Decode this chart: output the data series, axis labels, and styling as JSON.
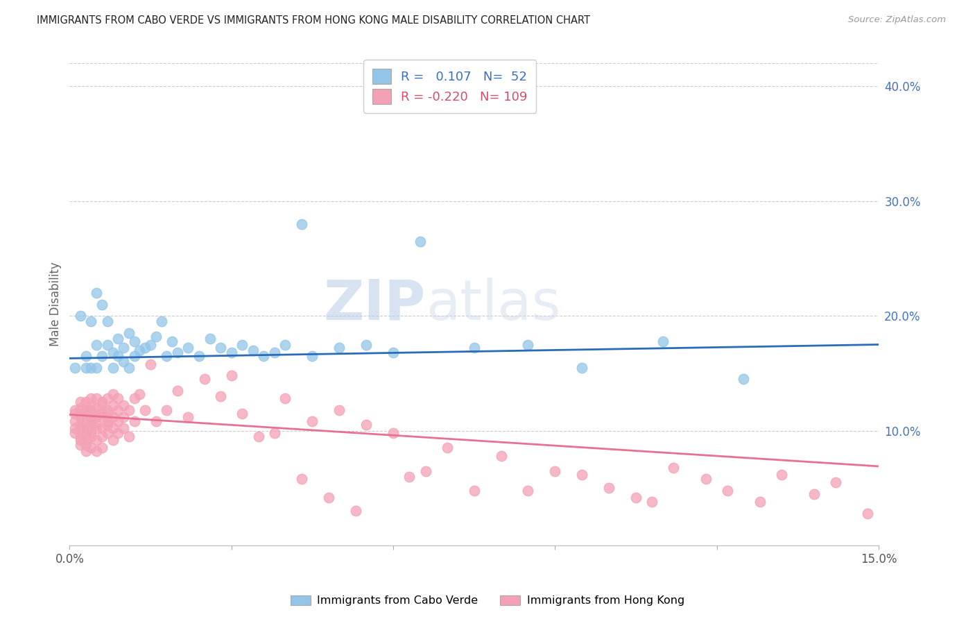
{
  "title": "IMMIGRANTS FROM CABO VERDE VS IMMIGRANTS FROM HONG KONG MALE DISABILITY CORRELATION CHART",
  "source": "Source: ZipAtlas.com",
  "ylabel": "Male Disability",
  "xlim": [
    0.0,
    0.15
  ],
  "ylim": [
    0.0,
    0.42
  ],
  "legend1_label": "Immigrants from Cabo Verde",
  "legend2_label": "Immigrants from Hong Kong",
  "r1": 0.107,
  "n1": 52,
  "r2": -0.22,
  "n2": 109,
  "cabo_verde_color": "#92C5E8",
  "hong_kong_color": "#F4A0B5",
  "trendline1_color": "#2B6CB8",
  "trendline2_color": "#E87090",
  "watermark_zip": "ZIP",
  "watermark_atlas": "atlas",
  "cabo_verde_x": [
    0.001,
    0.002,
    0.003,
    0.003,
    0.004,
    0.004,
    0.005,
    0.005,
    0.005,
    0.006,
    0.006,
    0.007,
    0.007,
    0.008,
    0.008,
    0.009,
    0.009,
    0.01,
    0.01,
    0.011,
    0.011,
    0.012,
    0.012,
    0.013,
    0.014,
    0.015,
    0.016,
    0.017,
    0.018,
    0.019,
    0.02,
    0.022,
    0.024,
    0.026,
    0.028,
    0.03,
    0.032,
    0.034,
    0.036,
    0.038,
    0.04,
    0.043,
    0.045,
    0.05,
    0.055,
    0.06,
    0.065,
    0.075,
    0.085,
    0.095,
    0.11,
    0.125
  ],
  "cabo_verde_y": [
    0.155,
    0.2,
    0.165,
    0.155,
    0.195,
    0.155,
    0.22,
    0.175,
    0.155,
    0.21,
    0.165,
    0.175,
    0.195,
    0.168,
    0.155,
    0.18,
    0.165,
    0.172,
    0.16,
    0.185,
    0.155,
    0.178,
    0.165,
    0.17,
    0.172,
    0.175,
    0.182,
    0.195,
    0.165,
    0.178,
    0.168,
    0.172,
    0.165,
    0.18,
    0.172,
    0.168,
    0.175,
    0.17,
    0.165,
    0.168,
    0.175,
    0.28,
    0.165,
    0.172,
    0.175,
    0.168,
    0.265,
    0.172,
    0.175,
    0.155,
    0.178,
    0.145
  ],
  "hong_kong_x": [
    0.001,
    0.001,
    0.001,
    0.001,
    0.001,
    0.002,
    0.002,
    0.002,
    0.002,
    0.002,
    0.002,
    0.002,
    0.002,
    0.002,
    0.003,
    0.003,
    0.003,
    0.003,
    0.003,
    0.003,
    0.003,
    0.003,
    0.003,
    0.004,
    0.004,
    0.004,
    0.004,
    0.004,
    0.004,
    0.004,
    0.004,
    0.004,
    0.005,
    0.005,
    0.005,
    0.005,
    0.005,
    0.005,
    0.005,
    0.005,
    0.006,
    0.006,
    0.006,
    0.006,
    0.006,
    0.006,
    0.006,
    0.007,
    0.007,
    0.007,
    0.007,
    0.007,
    0.007,
    0.008,
    0.008,
    0.008,
    0.008,
    0.008,
    0.009,
    0.009,
    0.009,
    0.009,
    0.01,
    0.01,
    0.01,
    0.011,
    0.011,
    0.012,
    0.012,
    0.013,
    0.014,
    0.015,
    0.016,
    0.018,
    0.02,
    0.022,
    0.025,
    0.028,
    0.03,
    0.032,
    0.035,
    0.038,
    0.04,
    0.043,
    0.045,
    0.048,
    0.05,
    0.053,
    0.055,
    0.06,
    0.063,
    0.066,
    0.07,
    0.075,
    0.08,
    0.085,
    0.09,
    0.095,
    0.1,
    0.105,
    0.108,
    0.112,
    0.118,
    0.122,
    0.128,
    0.132,
    0.138,
    0.142,
    0.148
  ],
  "hong_kong_y": [
    0.115,
    0.108,
    0.098,
    0.118,
    0.102,
    0.12,
    0.112,
    0.105,
    0.095,
    0.088,
    0.115,
    0.125,
    0.102,
    0.092,
    0.118,
    0.108,
    0.098,
    0.088,
    0.115,
    0.125,
    0.102,
    0.092,
    0.082,
    0.122,
    0.112,
    0.105,
    0.095,
    0.085,
    0.118,
    0.108,
    0.098,
    0.128,
    0.12,
    0.112,
    0.102,
    0.092,
    0.082,
    0.128,
    0.115,
    0.105,
    0.122,
    0.112,
    0.102,
    0.095,
    0.085,
    0.125,
    0.115,
    0.118,
    0.108,
    0.098,
    0.128,
    0.115,
    0.105,
    0.122,
    0.112,
    0.102,
    0.092,
    0.132,
    0.118,
    0.108,
    0.098,
    0.128,
    0.122,
    0.112,
    0.102,
    0.118,
    0.095,
    0.128,
    0.108,
    0.132,
    0.118,
    0.158,
    0.108,
    0.118,
    0.135,
    0.112,
    0.145,
    0.13,
    0.148,
    0.115,
    0.095,
    0.098,
    0.128,
    0.058,
    0.108,
    0.042,
    0.118,
    0.03,
    0.105,
    0.098,
    0.06,
    0.065,
    0.085,
    0.048,
    0.078,
    0.048,
    0.065,
    0.062,
    0.05,
    0.042,
    0.038,
    0.068,
    0.058,
    0.048,
    0.038,
    0.062,
    0.045,
    0.055,
    0.028
  ]
}
